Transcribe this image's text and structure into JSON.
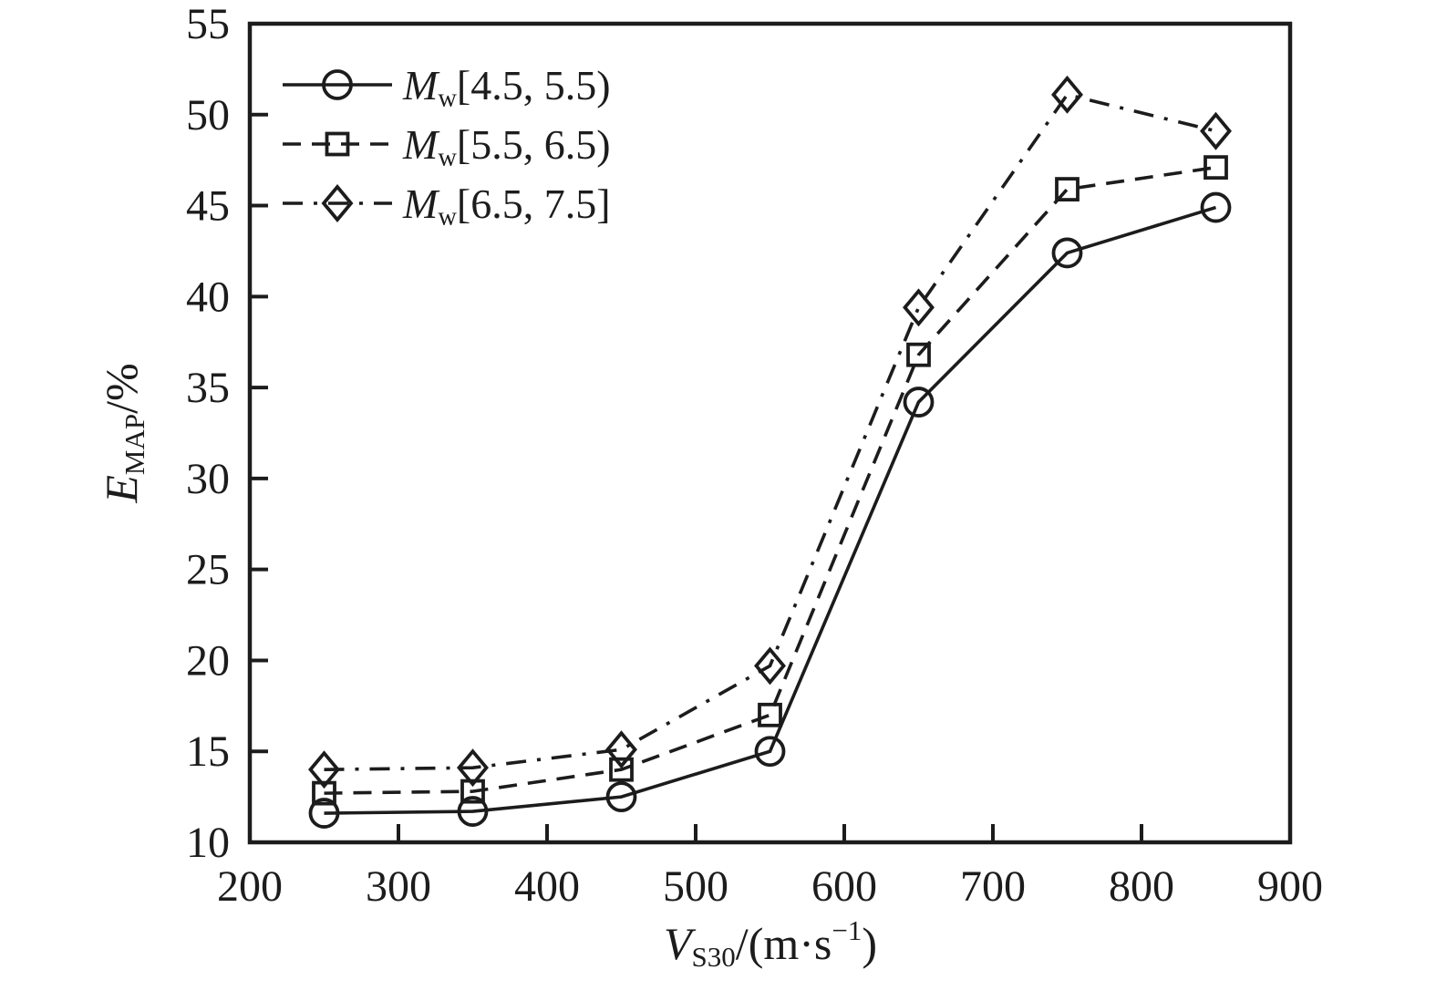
{
  "chart_data": {
    "type": "line",
    "title": "",
    "xlabel_text": "V_S30/(m·s−1)",
    "ylabel_text": "E_MAP/%",
    "xlabel_parts": [
      {
        "t": "V",
        "i": true
      },
      {
        "t": "S30",
        "sub": true
      },
      {
        "t": "/(m·s"
      },
      {
        "t": "−1",
        "sup": true
      },
      {
        "t": ")"
      }
    ],
    "ylabel_parts": [
      {
        "t": "E",
        "i": true
      },
      {
        "t": "MAP",
        "sub": true
      },
      {
        "t": "/%"
      }
    ],
    "xlim": [
      200,
      900
    ],
    "ylim": [
      10,
      55
    ],
    "x_ticks": [
      200,
      300,
      400,
      500,
      600,
      700,
      800,
      900
    ],
    "y_ticks": [
      10,
      15,
      20,
      25,
      30,
      35,
      40,
      45,
      50,
      55
    ],
    "grid": false,
    "legend_position": "top-left",
    "x": [
      250,
      350,
      450,
      550,
      650,
      750,
      850
    ],
    "series": [
      {
        "name": "Mw[4.5, 5.5)",
        "label_parts": [
          {
            "t": "M",
            "i": true
          },
          {
            "t": "w",
            "sub": true
          },
          {
            "t": "[4.5, 5.5)"
          }
        ],
        "marker": "circle",
        "line": "solid",
        "values": [
          11.6,
          11.7,
          12.5,
          15.0,
          34.2,
          42.4,
          44.9
        ]
      },
      {
        "name": "Mw[5.5, 6.5)",
        "label_parts": [
          {
            "t": "M",
            "i": true
          },
          {
            "t": "w",
            "sub": true
          },
          {
            "t": "[5.5, 6.5)"
          }
        ],
        "marker": "square",
        "line": "dashed",
        "values": [
          12.7,
          12.8,
          14.0,
          17.0,
          36.8,
          45.9,
          47.1
        ]
      },
      {
        "name": "Mw[6.5, 7.5]",
        "label_parts": [
          {
            "t": "M",
            "i": true
          },
          {
            "t": "w",
            "sub": true
          },
          {
            "t": "[6.5, 7.5]"
          }
        ],
        "marker": "diamond",
        "line": "dashdot",
        "values": [
          14.0,
          14.1,
          15.1,
          19.7,
          39.4,
          51.1,
          49.1
        ]
      }
    ],
    "ink_color": "#1c1c1c",
    "background": "#ffffff"
  }
}
